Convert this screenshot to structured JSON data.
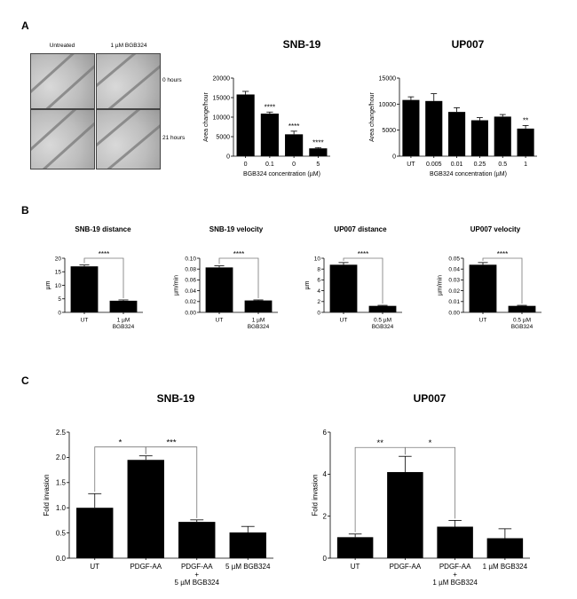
{
  "panel_labels": {
    "a": "A",
    "b": "B",
    "c": "C"
  },
  "micrograph": {
    "col_labels": [
      "Untreated",
      "1 µM BGB324"
    ],
    "row_labels": [
      "0 hours",
      "21 hours"
    ]
  },
  "chart_data": [
    {
      "id": "a-snb19",
      "type": "bar",
      "title": "SNB-19",
      "xlabel": "BGB324 concentration (µM)",
      "ylabel": "Area change/hour",
      "categories": [
        "0",
        "0.1",
        "0",
        "5"
      ],
      "values": [
        15800,
        10900,
        5600,
        2000
      ],
      "errors": [
        800,
        400,
        800,
        200
      ],
      "ylim": [
        0,
        20000
      ],
      "yticks": [
        "0",
        "5000",
        "10000",
        "15000",
        "20000"
      ],
      "ytick_values": [
        0,
        5000,
        10000,
        15000,
        20000
      ],
      "significance": [
        "",
        "****",
        "****",
        "****"
      ],
      "brackets": []
    },
    {
      "id": "a-up007",
      "type": "bar",
      "title": "UP007",
      "xlabel": "BGB324 concentration (µM)",
      "ylabel": "Area change/hour",
      "categories": [
        "UT",
        "0.005",
        "0.01",
        "0.25",
        "0.5",
        "1"
      ],
      "values": [
        10800,
        10600,
        8500,
        6900,
        7600,
        5300
      ],
      "errors": [
        600,
        1400,
        800,
        500,
        400,
        600
      ],
      "ylim": [
        0,
        15000
      ],
      "yticks": [
        "0",
        "5000",
        "10000",
        "15000"
      ],
      "ytick_values": [
        0,
        5000,
        10000,
        15000
      ],
      "significance": [
        "",
        "",
        "",
        "",
        "",
        "**"
      ],
      "brackets": []
    },
    {
      "id": "b-snb19-distance",
      "type": "bar",
      "title": "SNB-19 distance",
      "xlabel": "",
      "ylabel": "µm",
      "categories": [
        [
          "UT"
        ],
        [
          "1 µM",
          "BGB324"
        ]
      ],
      "values": [
        17.0,
        4.3
      ],
      "errors": [
        0.5,
        0.3
      ],
      "ylim": [
        0,
        20
      ],
      "yticks": [
        "0",
        "5",
        "10",
        "15",
        "20"
      ],
      "ytick_values": [
        0,
        5,
        10,
        15,
        20
      ],
      "significance": [],
      "brackets": [
        {
          "from": 0,
          "to": 1,
          "label": "****"
        }
      ]
    },
    {
      "id": "b-snb19-velocity",
      "type": "bar",
      "title": "SNB-19 velocity",
      "xlabel": "",
      "ylabel": "µm/min",
      "categories": [
        [
          "UT"
        ],
        [
          "1 µM",
          "BGB324"
        ]
      ],
      "values": [
        0.083,
        0.022
      ],
      "errors": [
        0.003,
        0.001
      ],
      "ylim": [
        0,
        0.1
      ],
      "yticks": [
        "0.00",
        "0.02",
        "0.04",
        "0.06",
        "0.08",
        "0.10"
      ],
      "ytick_values": [
        0,
        0.02,
        0.04,
        0.06,
        0.08,
        0.1
      ],
      "significance": [],
      "brackets": [
        {
          "from": 0,
          "to": 1,
          "label": "****"
        }
      ]
    },
    {
      "id": "b-up007-distance",
      "type": "bar",
      "title": "UP007 distance",
      "xlabel": "",
      "ylabel": "µm",
      "categories": [
        [
          "UT"
        ],
        [
          "0.5 µM",
          "BGB324"
        ]
      ],
      "values": [
        8.8,
        1.2
      ],
      "errors": [
        0.4,
        0.1
      ],
      "ylim": [
        0,
        10
      ],
      "yticks": [
        "0",
        "2",
        "4",
        "6",
        "8",
        "10"
      ],
      "ytick_values": [
        0,
        2,
        4,
        6,
        8,
        10
      ],
      "significance": [],
      "brackets": [
        {
          "from": 0,
          "to": 1,
          "label": "****"
        }
      ]
    },
    {
      "id": "b-up007-velocity",
      "type": "bar",
      "title": "UP007 velocity",
      "xlabel": "",
      "ylabel": "µm/min",
      "categories": [
        [
          "UT"
        ],
        [
          "0.5 µM",
          "BGB324"
        ]
      ],
      "values": [
        0.044,
        0.006
      ],
      "errors": [
        0.002,
        0.0005
      ],
      "ylim": [
        0,
        0.05
      ],
      "yticks": [
        "0.00",
        "0.01",
        "0.02",
        "0.03",
        "0.04",
        "0.05"
      ],
      "ytick_values": [
        0,
        0.01,
        0.02,
        0.03,
        0.04,
        0.05
      ],
      "significance": [],
      "brackets": [
        {
          "from": 0,
          "to": 1,
          "label": "****"
        }
      ]
    },
    {
      "id": "c-snb19",
      "type": "bar",
      "title": "SNB-19",
      "xlabel": "",
      "ylabel": "Fold invasion",
      "categories": [
        [
          "UT"
        ],
        [
          "PDGF-AA"
        ],
        [
          "PDGF-AA",
          "+",
          "5 µM BGB324"
        ],
        [
          "5 µM BGB324"
        ]
      ],
      "values": [
        1.0,
        1.95,
        0.72,
        0.51
      ],
      "errors": [
        0.28,
        0.08,
        0.04,
        0.12
      ],
      "ylim": [
        0,
        2.5
      ],
      "yticks": [
        "0.0",
        "0.5",
        "1.0",
        "1.5",
        "2.0",
        "2.5"
      ],
      "ytick_values": [
        0,
        0.5,
        1.0,
        1.5,
        2.0,
        2.5
      ],
      "significance": [],
      "brackets": [
        {
          "from": 0,
          "to": 1,
          "label": "*"
        },
        {
          "from": 1,
          "to": 2,
          "label": "***"
        }
      ]
    },
    {
      "id": "c-up007",
      "type": "bar",
      "title": "UP007",
      "xlabel": "",
      "ylabel": "Fold invasion",
      "categories": [
        [
          "UT"
        ],
        [
          "PDGF-AA"
        ],
        [
          "PDGF-AA",
          "+",
          "1 µM BGB324"
        ],
        [
          "1 µM BGB324"
        ]
      ],
      "values": [
        1.0,
        4.1,
        1.5,
        0.95
      ],
      "errors": [
        0.15,
        0.75,
        0.3,
        0.45
      ],
      "ylim": [
        0,
        6
      ],
      "yticks": [
        "0",
        "2",
        "4",
        "6"
      ],
      "ytick_values": [
        0,
        2,
        4,
        6
      ],
      "significance": [],
      "brackets": [
        {
          "from": 0,
          "to": 1,
          "label": "**"
        },
        {
          "from": 1,
          "to": 2,
          "label": "*"
        }
      ]
    }
  ]
}
